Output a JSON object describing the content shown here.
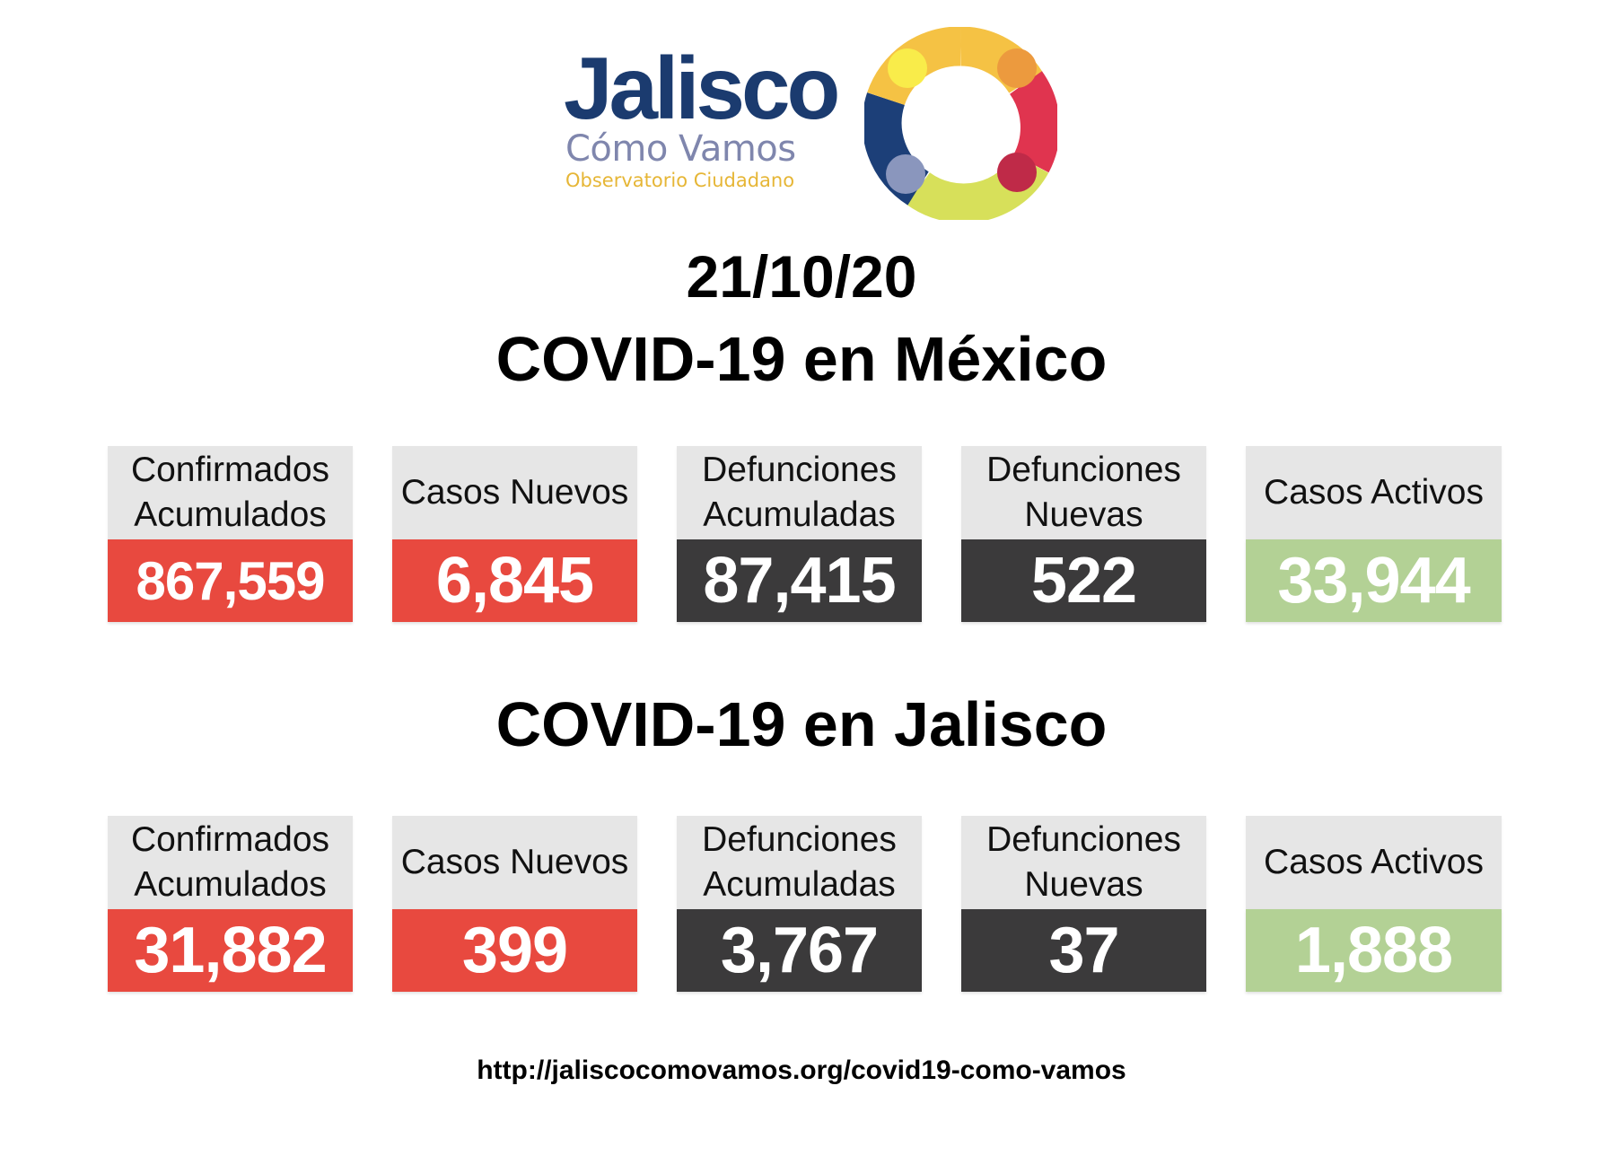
{
  "logo": {
    "title": "Jalisco",
    "subtitle": "Cómo Vamos",
    "tagline": "Observatorio Ciudadano",
    "colors": {
      "navy": "#1b3b6f",
      "lavender": "#7f86ad",
      "gold": "#e6b636"
    }
  },
  "date": "21/10/20",
  "mexico": {
    "heading": "COVID-19 en México",
    "stats": [
      {
        "label": "Confirmados\nAcumulados",
        "value": "867,559"
      },
      {
        "label": "Casos Nuevos",
        "value": "6,845"
      },
      {
        "label": "Defunciones\nAcumuladas",
        "value": "87,415"
      },
      {
        "label": "Defunciones\nNuevas",
        "value": "522"
      },
      {
        "label": "Casos Activos",
        "value": "33,944"
      }
    ]
  },
  "jalisco": {
    "heading": "COVID-19 en Jalisco",
    "stats": [
      {
        "label": "Confirmados\nAcumulados",
        "value": "31,882"
      },
      {
        "label": "Casos Nuevos",
        "value": "399"
      },
      {
        "label": "Defunciones\nAcumuladas",
        "value": "3,767"
      },
      {
        "label": "Defunciones\nNuevas",
        "value": "37"
      },
      {
        "label": "Casos Activos",
        "value": "1,888"
      }
    ]
  },
  "footer": {
    "url": "http://jaliscocomovamos.org/covid19-como-vamos"
  },
  "colors": {
    "red": "#e8493f",
    "dark": "#3b3a3b",
    "green": "#b3d195",
    "label_bg": "#e6e6e6"
  }
}
